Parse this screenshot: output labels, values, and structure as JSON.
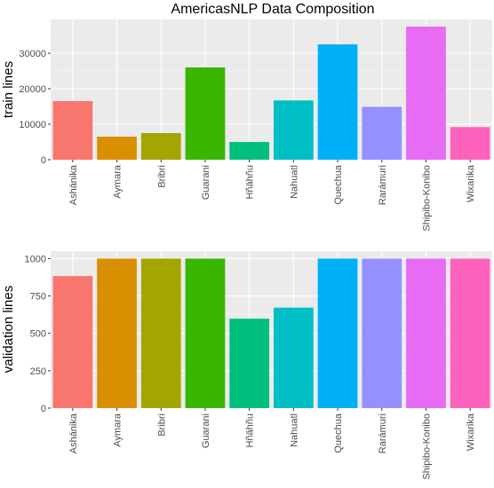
{
  "figure": {
    "title": "AmericasNLP Data Composition"
  },
  "chart_data": [
    {
      "type": "bar",
      "title": "AmericasNLP Data Composition",
      "xlabel": "",
      "ylabel": "train lines",
      "categories": [
        "Ashánika",
        "Aymara",
        "Bribri",
        "Guarani",
        "Hñähñu",
        "Nahuatl",
        "Quechua",
        "Rarámuri",
        "Shipibo-Konibo",
        "Wixarika"
      ],
      "values": [
        16500,
        6500,
        7500,
        26000,
        5000,
        16700,
        32500,
        14900,
        37500,
        9200
      ],
      "colors": [
        "#F8766D",
        "#D89000",
        "#A3A500",
        "#39B600",
        "#00BF7D",
        "#00BFC4",
        "#00B0F6",
        "#9590FF",
        "#E76BF3",
        "#FF62BC"
      ],
      "ylim": [
        0,
        39500
      ],
      "yticks": [
        0,
        10000,
        20000,
        30000
      ],
      "grid": true,
      "legend": "none"
    },
    {
      "type": "bar",
      "title": "",
      "xlabel": "",
      "ylabel": "validation lines",
      "categories": [
        "Ashánika",
        "Aymara",
        "Bribri",
        "Guarani",
        "Hñähñu",
        "Nahuatl",
        "Quechua",
        "Rarámuri",
        "Shipibo-Konibo",
        "Wixarika"
      ],
      "values": [
        883,
        1000,
        1000,
        1000,
        598,
        672,
        1000,
        1000,
        1000,
        1000
      ],
      "colors": [
        "#F8766D",
        "#D89000",
        "#A3A500",
        "#39B600",
        "#00BF7D",
        "#00BFC4",
        "#00B0F6",
        "#9590FF",
        "#E76BF3",
        "#FF62BC"
      ],
      "ylim": [
        0,
        1050
      ],
      "yticks": [
        0,
        250,
        500,
        750,
        1000
      ],
      "grid": true,
      "legend": "none"
    }
  ]
}
